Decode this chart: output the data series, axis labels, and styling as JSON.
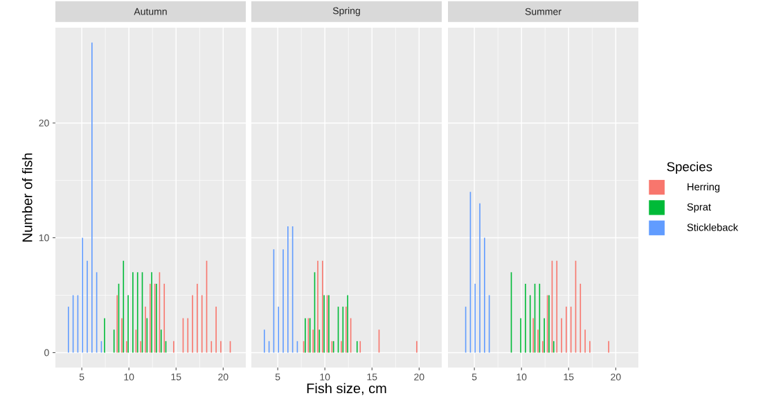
{
  "chart_data": [
    {
      "type": "bar",
      "title": "Autumn",
      "ylabel": "Number of fish",
      "xlim": [
        2.2,
        22.4
      ],
      "ylim": [
        -1.3,
        28.3
      ],
      "xticks": [
        5,
        10,
        15,
        20
      ],
      "yticks": [
        0,
        10,
        20
      ],
      "grid": true,
      "legend": false,
      "series": [
        {
          "color": "#f8766d",
          "x": [
            8.75,
            9.25,
            9.75,
            10.75,
            11.25,
            11.75,
            12.25,
            12.75,
            13.25,
            13.75,
            14.75,
            15.75,
            16.25,
            16.75,
            17.25,
            17.75,
            18.25,
            18.75,
            19.25,
            19.75,
            20.75
          ],
          "values": [
            5,
            3,
            1,
            2,
            1,
            4,
            6,
            6,
            7,
            6,
            1,
            3,
            3,
            5,
            6,
            5,
            8,
            1,
            4,
            1,
            1
          ]
        },
        {
          "color": "#00ba38",
          "x": [
            7.42,
            8.42,
            8.92,
            9.42,
            9.92,
            10.42,
            10.92,
            11.42,
            11.92,
            12.42,
            12.92,
            13.42,
            13.92
          ],
          "values": [
            3,
            2,
            6,
            8,
            5,
            7,
            7,
            7,
            3,
            7,
            6,
            2,
            1
          ]
        },
        {
          "color": "#619cff",
          "x": [
            3.58,
            4.08,
            4.58,
            5.08,
            5.58,
            6.08,
            6.58,
            7.08
          ],
          "values": [
            4,
            5,
            5,
            10,
            8,
            27,
            7,
            1
          ]
        }
      ]
    },
    {
      "type": "bar",
      "title": "Spring",
      "xlabel": "Fish size, cm",
      "xlim": [
        2.2,
        22.4
      ],
      "ylim": [
        -1.3,
        28.3
      ],
      "xticks": [
        5,
        10,
        15,
        20
      ],
      "yticks": [
        0,
        10,
        20
      ],
      "grid": true,
      "legend": false,
      "tick_labels": "x",
      "series": [
        {
          "color": "#f8766d",
          "x": [
            7.75,
            8.25,
            8.75,
            9.25,
            9.75,
            10.25,
            10.75,
            11.75,
            12.25,
            12.75,
            13.75,
            15.75,
            19.75
          ],
          "values": [
            1,
            3,
            2,
            8,
            8,
            5,
            1,
            1,
            4,
            3,
            1,
            2,
            1
          ]
        },
        {
          "color": "#00ba38",
          "x": [
            7.92,
            8.42,
            8.92,
            9.42,
            9.92,
            10.42,
            10.92,
            11.42,
            11.92,
            12.42,
            13.42
          ],
          "values": [
            3,
            3,
            7,
            2,
            5,
            5,
            1,
            4,
            4,
            5,
            1
          ]
        },
        {
          "color": "#619cff",
          "x": [
            3.58,
            4.08,
            4.58,
            5.08,
            5.58,
            6.08,
            6.58,
            7.08
          ],
          "values": [
            2,
            1,
            9,
            4,
            9,
            11,
            11,
            1
          ]
        }
      ]
    },
    {
      "type": "bar",
      "title": "Summer",
      "xlim": [
        2.2,
        22.4
      ],
      "ylim": [
        -1.3,
        28.3
      ],
      "xticks": [
        5,
        10,
        15,
        20
      ],
      "yticks": [
        0,
        10,
        20
      ],
      "grid": true,
      "legend": "right",
      "legend_title": "Species",
      "tick_labels": "x",
      "series": [
        {
          "name": "Herring",
          "color": "#f8766d",
          "x": [
            11.25,
            11.75,
            12.25,
            12.75,
            13.25,
            13.75,
            14.25,
            14.75,
            15.25,
            15.75,
            16.25,
            16.75,
            17.25,
            19.25
          ],
          "values": [
            3,
            2,
            1,
            5,
            8,
            8,
            3,
            4,
            4,
            8,
            6,
            2,
            1,
            1
          ]
        },
        {
          "name": "Sprat",
          "color": "#00ba38",
          "x": [
            8.92,
            9.92,
            10.42,
            10.92,
            11.42,
            11.92,
            12.42,
            12.92,
            13.42
          ],
          "values": [
            7,
            3,
            6,
            5,
            6,
            6,
            3,
            5,
            1
          ]
        },
        {
          "name": "Stickleback",
          "color": "#619cff",
          "x": [
            4.08,
            4.58,
            5.08,
            5.58,
            6.08,
            6.58
          ],
          "values": [
            4,
            14,
            6,
            13,
            10,
            5
          ]
        }
      ]
    }
  ]
}
